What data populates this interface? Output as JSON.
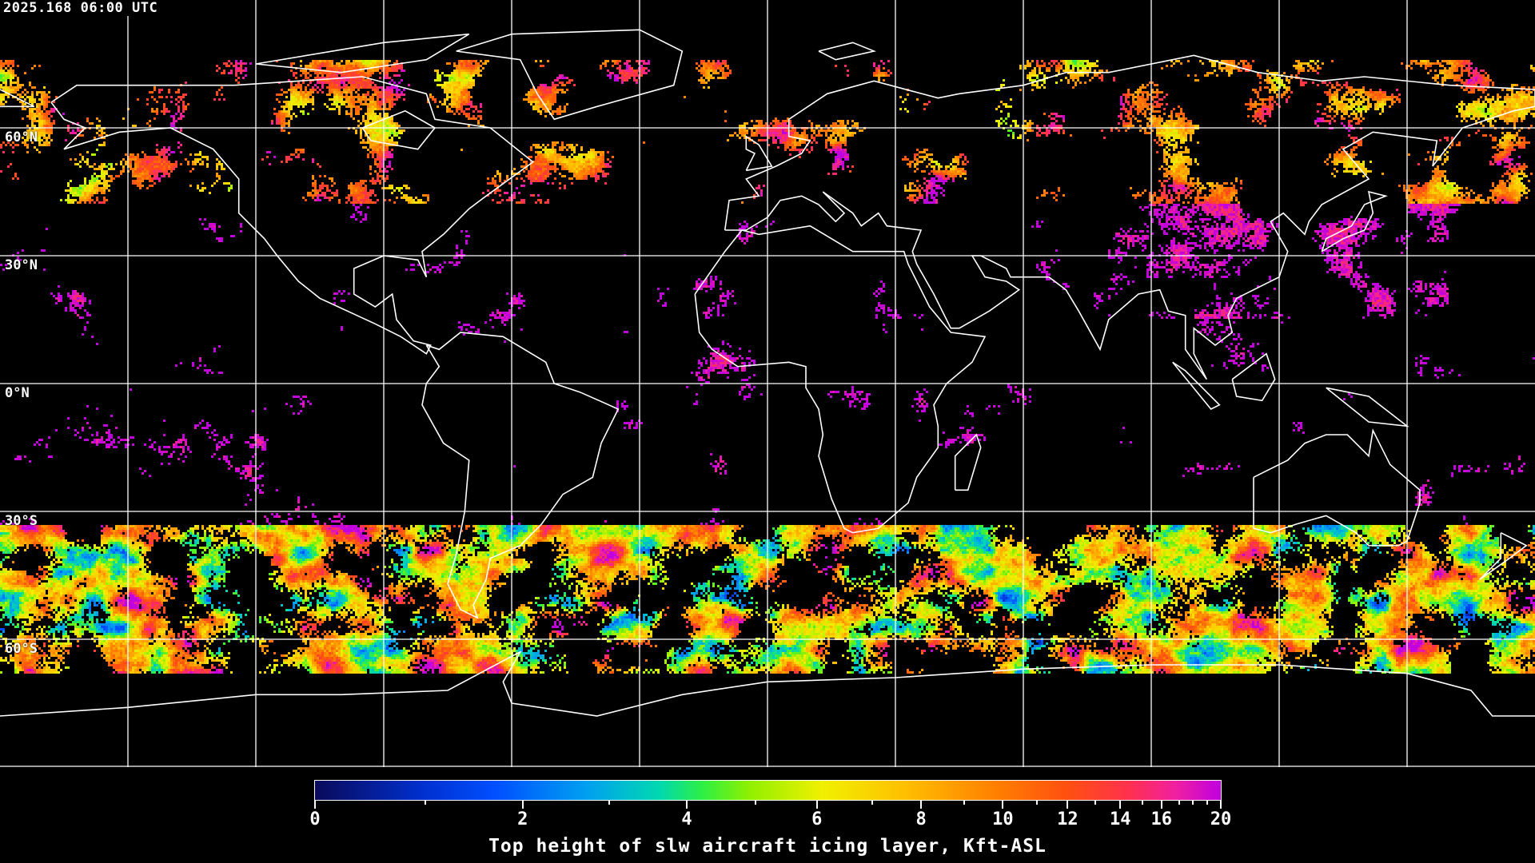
{
  "header": {
    "timestamp": "2025.168 06:00 UTC"
  },
  "map": {
    "projection": "equirectangular",
    "grid_spacing_degrees": 30,
    "grid_color": "#ffffff",
    "coastline_color": "#ffffff",
    "background_color": "#000000",
    "lat_labels": [
      "60°N",
      "30°N",
      "0°N",
      "30°S",
      "60°S"
    ]
  },
  "colorbar": {
    "title": "Top height of slw aircraft icing layer, Kft-ASL",
    "range": [
      0,
      20
    ],
    "tick_labels": [
      "0",
      "2",
      "4",
      "6",
      "8",
      "10",
      "12",
      "14",
      "16",
      "20"
    ],
    "colors": [
      "#0a0a5a",
      "#0050ff",
      "#00a0f0",
      "#30f040",
      "#f0f000",
      "#ffc000",
      "#ff8000",
      "#ff5010",
      "#f020a0",
      "#c000e0"
    ]
  }
}
